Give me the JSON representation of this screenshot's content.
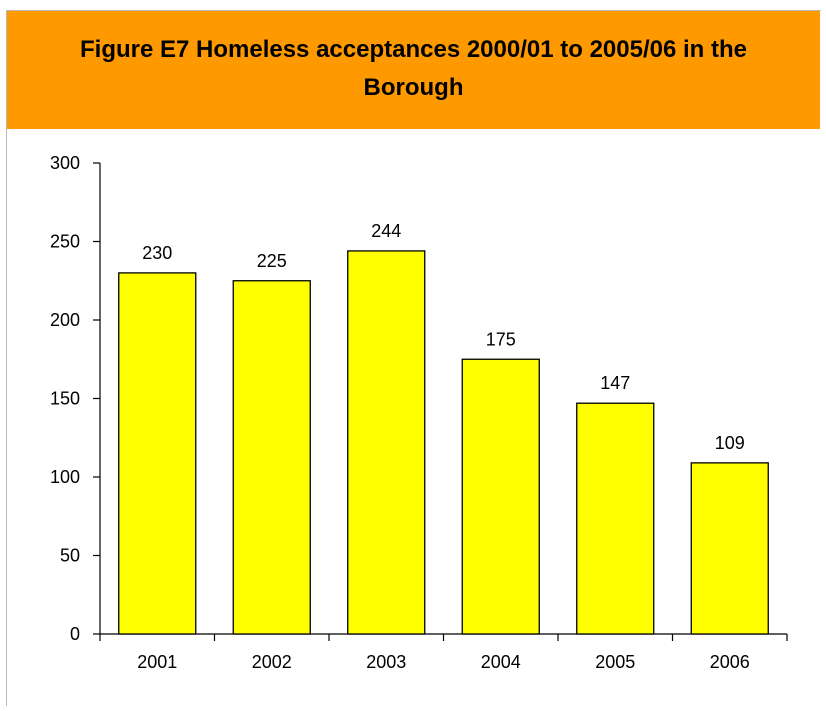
{
  "chart_data": {
    "type": "bar",
    "title": "Figure E7 Homeless acceptances 2000/01 to 2005/06 in the Borough",
    "categories": [
      "2001",
      "2002",
      "2003",
      "2004",
      "2005",
      "2006"
    ],
    "values": [
      230,
      225,
      244,
      175,
      147,
      109
    ],
    "data_labels": [
      "230",
      "225",
      "244",
      "175",
      "147",
      "109"
    ],
    "y_ticks": [
      0,
      50,
      100,
      150,
      200,
      250,
      300
    ],
    "ylim": [
      0,
      300
    ],
    "grid": false,
    "legend": "none",
    "colors": {
      "bar_fill": "#ffff00",
      "bar_stroke": "#000000",
      "title_band": "#ff9900"
    }
  }
}
